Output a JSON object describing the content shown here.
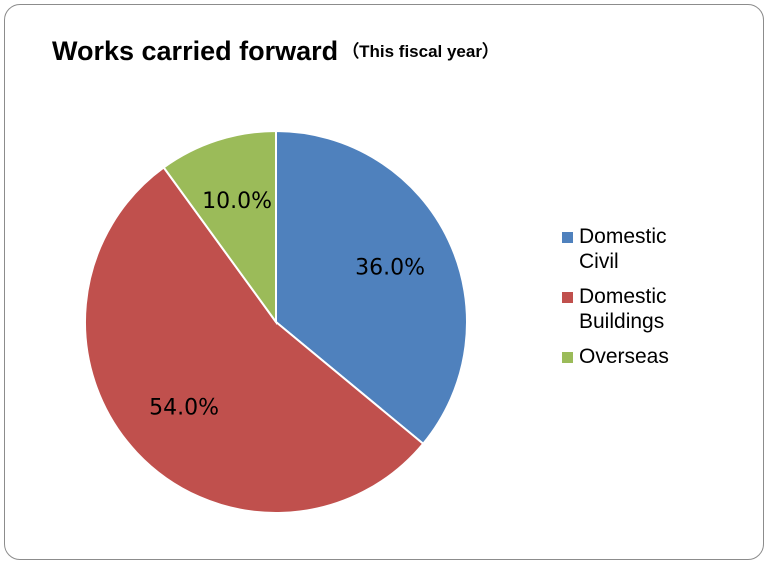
{
  "chart_data": {
    "type": "pie",
    "title": "Works carried forward",
    "subtitle": "（This fiscal year）",
    "start_angle_deg": 0,
    "direction": "clockwise",
    "categories": [
      "Domestic Civil",
      "Domestic Buildings",
      "Overseas"
    ],
    "values": [
      36.0,
      54.0,
      10.0
    ],
    "data_labels": [
      "36.0%",
      "54.0%",
      "10.0%"
    ],
    "colors": [
      "#4f81bd",
      "#c0504d",
      "#9bbb59"
    ],
    "legend_position": "right"
  }
}
